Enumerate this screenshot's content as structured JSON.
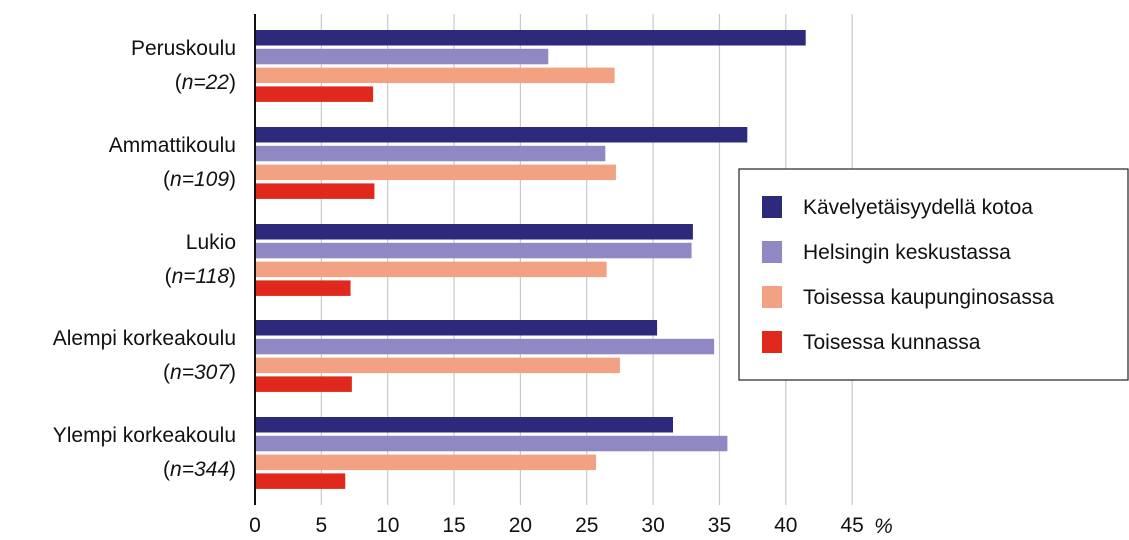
{
  "chart_data": {
    "type": "bar",
    "orientation": "horizontal",
    "categories": [
      {
        "name": "Peruskoulu",
        "n": "n=22"
      },
      {
        "name": "Ammattikoulu",
        "n": "n=109"
      },
      {
        "name": "Lukio",
        "n": "n=118"
      },
      {
        "name": "Alempi korkeakoulu",
        "n": "n=307"
      },
      {
        "name": "Ylempi korkeakoulu",
        "n": "n=344"
      }
    ],
    "series": [
      {
        "name": "Kävelyetäisyydellä kotoa",
        "color": "#2e2a7b",
        "values": [
          41.5,
          37.1,
          33.0,
          30.3,
          31.5
        ]
      },
      {
        "name": "Helsingin keskustassa",
        "color": "#9088c2",
        "values": [
          22.1,
          26.4,
          32.9,
          34.6,
          35.6
        ]
      },
      {
        "name": "Toisessa kaupunginosassa",
        "color": "#f2a283",
        "values": [
          27.1,
          27.2,
          26.5,
          27.5,
          25.7
        ]
      },
      {
        "name": "Toisessa kunnassa",
        "color": "#e0281c",
        "values": [
          8.9,
          9.0,
          7.2,
          7.3,
          6.8
        ]
      }
    ],
    "x_ticks": [
      "0",
      "5",
      "10",
      "15",
      "20",
      "25",
      "30",
      "35",
      "40",
      "45"
    ],
    "x_unit": "%",
    "xlim": [
      0,
      45
    ],
    "grid": true,
    "legend_position": "right"
  }
}
